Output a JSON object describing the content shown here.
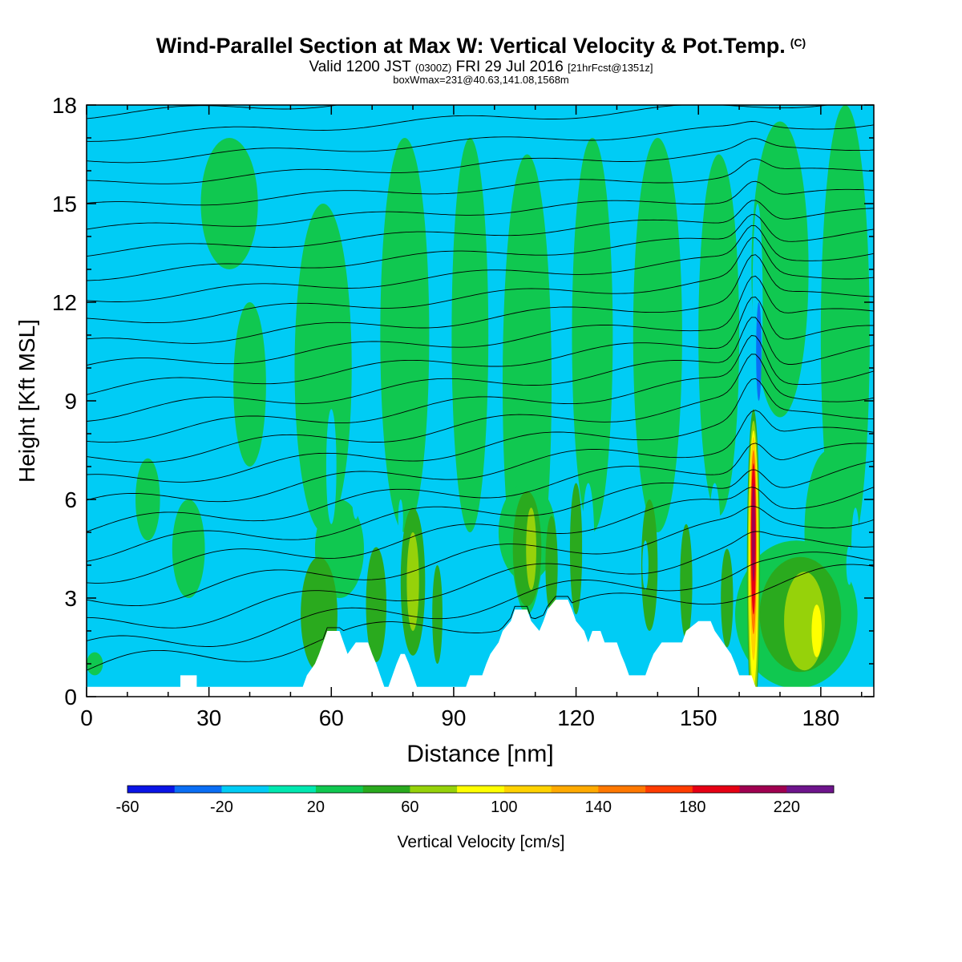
{
  "header": {
    "title": "Wind-Parallel Section at Max W: Vertical Velocity & Pot.Temp.",
    "copyright_mark": "(C)",
    "valid_prefix": "Valid 1200 JST",
    "valid_utc": "(0300Z)",
    "valid_date": "FRI 29 Jul 2016",
    "forecast_info": "[21hrFcst@1351z]",
    "box_info": "boxWmax=231@40.63,141.08,1568m"
  },
  "colors": {
    "background_field": "#00ccf5",
    "mid_green": "#00e8b0",
    "terrain": "#ffffff",
    "isentrope_line": "#000000"
  },
  "chart_data": {
    "type": "heatmap",
    "description_fields": [
      "vertical velocity (shaded)",
      "potential temperature (contours)"
    ],
    "xlabel": "Distance [nm]",
    "ylabel": "Height [Kft MSL]",
    "xlim": [
      0,
      193
    ],
    "ylim": [
      0,
      18
    ],
    "xticks": [
      0,
      30,
      60,
      90,
      120,
      150,
      180
    ],
    "yticks": [
      0,
      3,
      6,
      9,
      12,
      15,
      18
    ],
    "colorbar": {
      "label": "Vertical Velocity [cm/s]",
      "bounds": [
        -60,
        240
      ],
      "tick_labels": [
        -60,
        -20,
        20,
        60,
        100,
        140,
        180,
        220
      ],
      "colors": [
        "#0a14e6",
        "#0a6ef5",
        "#00ccf5",
        "#00e8b0",
        "#10c850",
        "#2aaa1e",
        "#96d20a",
        "#ffff00",
        "#ffd200",
        "#ffaa00",
        "#ff7800",
        "#ff3c00",
        "#e60014",
        "#a00050",
        "#6e148c"
      ]
    },
    "terrain_profile_kft": [
      [
        0,
        0.3
      ],
      [
        23,
        0.3
      ],
      [
        23,
        0.65
      ],
      [
        27,
        0.65
      ],
      [
        27,
        0.3
      ],
      [
        53,
        0.3
      ],
      [
        54,
        0.65
      ],
      [
        56,
        1.0
      ],
      [
        57,
        1.3
      ],
      [
        58,
        1.65
      ],
      [
        59,
        2.0
      ],
      [
        62,
        2.0
      ],
      [
        63,
        1.65
      ],
      [
        64,
        1.3
      ],
      [
        66,
        1.65
      ],
      [
        69,
        1.65
      ],
      [
        70,
        1.3
      ],
      [
        71,
        1.0
      ],
      [
        72,
        0.65
      ],
      [
        73,
        0.3
      ],
      [
        74,
        0.3
      ],
      [
        75,
        0.65
      ],
      [
        76,
        1.0
      ],
      [
        77,
        1.3
      ],
      [
        78,
        1.3
      ],
      [
        79,
        1.0
      ],
      [
        80,
        0.65
      ],
      [
        81,
        0.3
      ],
      [
        93,
        0.3
      ],
      [
        94,
        0.65
      ],
      [
        97,
        0.65
      ],
      [
        98,
        1.0
      ],
      [
        99,
        1.3
      ],
      [
        101,
        1.65
      ],
      [
        102,
        2.0
      ],
      [
        104,
        2.3
      ],
      [
        105,
        2.65
      ],
      [
        108,
        2.65
      ],
      [
        109,
        2.3
      ],
      [
        111,
        2.0
      ],
      [
        112,
        2.3
      ],
      [
        113,
        2.65
      ],
      [
        115,
        2.95
      ],
      [
        118,
        2.95
      ],
      [
        119,
        2.65
      ],
      [
        120,
        2.3
      ],
      [
        122,
        2.0
      ],
      [
        123,
        1.65
      ],
      [
        124,
        2.0
      ],
      [
        126,
        2.0
      ],
      [
        127,
        1.65
      ],
      [
        130,
        1.65
      ],
      [
        131,
        1.3
      ],
      [
        132,
        1.0
      ],
      [
        133,
        0.65
      ],
      [
        137,
        0.65
      ],
      [
        138,
        1.0
      ],
      [
        139,
        1.3
      ],
      [
        141,
        1.65
      ],
      [
        146,
        1.65
      ],
      [
        147,
        2.0
      ],
      [
        150,
        2.3
      ],
      [
        153,
        2.3
      ],
      [
        154,
        2.0
      ],
      [
        156,
        1.65
      ],
      [
        158,
        1.3
      ],
      [
        159,
        1.0
      ],
      [
        160,
        0.65
      ],
      [
        163,
        0.65
      ],
      [
        164,
        0.3
      ],
      [
        193,
        0.3
      ]
    ],
    "cells": [
      {
        "x": 2,
        "y": 1.0,
        "w": 4,
        "h": 0.7,
        "v": 20
      },
      {
        "x": 15,
        "y": 6.0,
        "w": 6,
        "h": 2.5,
        "v": 20
      },
      {
        "x": 25,
        "y": 4.5,
        "w": 8,
        "h": 3.0,
        "v": 20
      },
      {
        "x": 40,
        "y": 9.5,
        "w": 8,
        "h": 5.0,
        "v": 20
      },
      {
        "x": 35,
        "y": 15.0,
        "w": 14,
        "h": 4.0,
        "v": 20
      },
      {
        "x": 58,
        "y": 10.0,
        "w": 14,
        "h": 10.0,
        "v": 20
      },
      {
        "x": 62,
        "y": 4.5,
        "w": 12,
        "h": 3.0,
        "v": 20
      },
      {
        "x": 78,
        "y": 11.0,
        "w": 12,
        "h": 12.0,
        "v": 20
      },
      {
        "x": 94,
        "y": 11.0,
        "w": 9,
        "h": 12.0,
        "v": 20
      },
      {
        "x": 108,
        "y": 9.5,
        "w": 12,
        "h": 14.0,
        "v": 20
      },
      {
        "x": 124,
        "y": 11.0,
        "w": 10,
        "h": 12.0,
        "v": 20
      },
      {
        "x": 140,
        "y": 11.0,
        "w": 12,
        "h": 12.0,
        "v": 20
      },
      {
        "x": 155,
        "y": 11.0,
        "w": 10,
        "h": 11.0,
        "v": 20
      },
      {
        "x": 170,
        "y": 13.0,
        "w": 14,
        "h": 9.0,
        "v": 20
      },
      {
        "x": 186,
        "y": 11.0,
        "w": 12,
        "h": 14.0,
        "v": 20
      },
      {
        "x": 182,
        "y": 5.0,
        "w": 12,
        "h": 5.0,
        "v": 20
      },
      {
        "x": 174,
        "y": 2.5,
        "w": 30,
        "h": 4.5,
        "v": 20
      },
      {
        "x": 108,
        "y": 5.0,
        "w": 14,
        "h": 3.0,
        "v": 20
      },
      {
        "x": 57,
        "y": 2.5,
        "w": 9,
        "h": 3.5,
        "v": 40
      },
      {
        "x": 71,
        "y": 2.8,
        "w": 5,
        "h": 3.5,
        "v": 40
      },
      {
        "x": 80,
        "y": 3.5,
        "w": 6,
        "h": 4.5,
        "v": 40
      },
      {
        "x": 86,
        "y": 2.5,
        "w": 2.5,
        "h": 3.0,
        "v": 40
      },
      {
        "x": 108,
        "y": 4.5,
        "w": 7,
        "h": 3.5,
        "v": 40
      },
      {
        "x": 114,
        "y": 4.0,
        "w": 3,
        "h": 3.0,
        "v": 40
      },
      {
        "x": 120,
        "y": 4.5,
        "w": 3,
        "h": 4.0,
        "v": 40
      },
      {
        "x": 138,
        "y": 4.0,
        "w": 4,
        "h": 4.0,
        "v": 40
      },
      {
        "x": 147,
        "y": 3.5,
        "w": 3,
        "h": 3.5,
        "v": 40
      },
      {
        "x": 157,
        "y": 3.0,
        "w": 3,
        "h": 3.0,
        "v": 40
      },
      {
        "x": 175,
        "y": 2.5,
        "w": 20,
        "h": 3.5,
        "v": 40
      },
      {
        "x": 80,
        "y": 3.5,
        "w": 3,
        "h": 3.0,
        "v": 60
      },
      {
        "x": 109,
        "y": 4.5,
        "w": 2.5,
        "h": 2.5,
        "v": 60
      },
      {
        "x": 176,
        "y": 2.3,
        "w": 10,
        "h": 3.0,
        "v": 60
      },
      {
        "x": 179,
        "y": 2.0,
        "w": 2.5,
        "h": 1.6,
        "v": 80
      },
      {
        "x": 60,
        "y": 7.0,
        "w": 2.5,
        "h": 3.5,
        "v": -20
      },
      {
        "x": 66,
        "y": 6.3,
        "w": 2,
        "h": 1.8,
        "v": -20
      },
      {
        "x": 51.5,
        "y": 4.2,
        "w": 1.5,
        "h": 1.2,
        "v": -20
      },
      {
        "x": 77,
        "y": 5.4,
        "w": 1.2,
        "h": 1.2,
        "v": -20
      },
      {
        "x": 123,
        "y": 4.5,
        "w": 3,
        "h": 4.0,
        "v": -20
      },
      {
        "x": 137,
        "y": 4.0,
        "w": 1.5,
        "h": 1.5,
        "v": -20
      },
      {
        "x": 154,
        "y": 4.5,
        "w": 3,
        "h": 4.0,
        "v": -20
      },
      {
        "x": 164.5,
        "y": 12.0,
        "w": 2.5,
        "h": 6.0,
        "v": -20
      },
      {
        "x": 164.8,
        "y": 10.5,
        "w": 1.3,
        "h": 3.0,
        "v": -40
      },
      {
        "x": 174.5,
        "y": 6.5,
        "w": 3,
        "h": 2.5,
        "v": -20
      },
      {
        "x": 188.5,
        "y": 4.5,
        "w": 2,
        "h": 2.5,
        "v": -20
      },
      {
        "x": 187,
        "y": 4.0,
        "w": 1.5,
        "h": 1.2,
        "v": -20
      }
    ],
    "updraft_core": [
      {
        "x": 163.5,
        "y": 4.0,
        "w": 3.2,
        "h": 9.5,
        "v": 40
      },
      {
        "x": 163.5,
        "y": 4.0,
        "w": 2.8,
        "h": 8.8,
        "v": 60
      },
      {
        "x": 163.5,
        "y": 4.2,
        "w": 2.3,
        "h": 7.8,
        "v": 80
      },
      {
        "x": 163.5,
        "y": 4.5,
        "w": 1.9,
        "h": 6.8,
        "v": 100
      },
      {
        "x": 163.5,
        "y": 4.7,
        "w": 1.5,
        "h": 5.6,
        "v": 140
      },
      {
        "x": 163.5,
        "y": 4.8,
        "w": 1.2,
        "h": 4.6,
        "v": 180
      },
      {
        "x": 163.5,
        "y": 5.0,
        "w": 0.8,
        "h": 3.0,
        "v": 200
      }
    ],
    "isentrope_start_heights_kft": [
      0.8,
      1.4,
      2.1,
      2.9,
      3.7,
      4.4,
      5.1,
      5.8,
      6.5,
      7.2,
      7.9,
      8.6,
      9.3,
      10.0,
      10.7,
      11.4,
      12.1,
      12.8,
      13.5,
      14.2,
      14.9,
      15.6,
      16.3,
      17.0,
      17.7
    ]
  }
}
